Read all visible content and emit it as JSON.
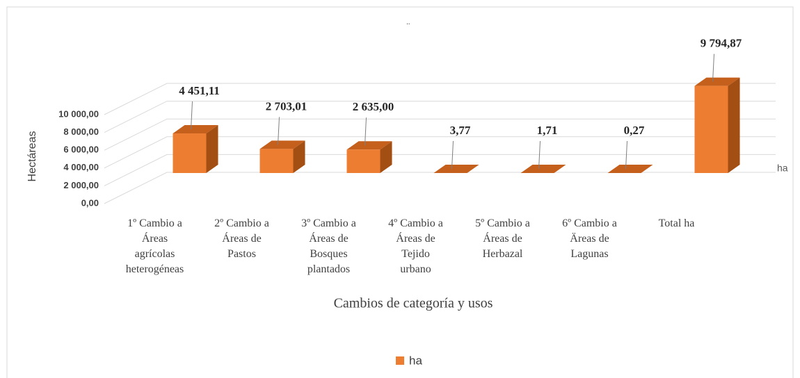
{
  "chart_data": {
    "type": "bar3d",
    "title": "¨",
    "x_label": "Cambios de categoría y usos",
    "y_label": "Hectáreas",
    "depth_label": "ha",
    "categories": [
      "1º Cambio a\nÁreas\nagrícolas\nheterogéneas",
      "2º  Cambio a\nÁreas de\nPastos",
      "3º Cambio a\nÁreas de\nBosques\nplantados",
      "4º  Cambio a\nÁreas de\nTejido\nurbano",
      "5º Cambio a\nÁreas de\nHerbazal",
      "6º Cambio a\nÄreas de\nLagunas",
      "Total  ha"
    ],
    "series": [
      {
        "name": "ha",
        "color": "#ed7d31",
        "values": [
          4451.11,
          2703.01,
          2635.0,
          3.77,
          1.71,
          0.27,
          9794.87
        ],
        "value_labels": [
          "4 451,11",
          "2 703,01",
          "2 635,00",
          "3,77",
          "1,71",
          "0,27",
          "9 794,87"
        ]
      }
    ],
    "ylim": [
      0,
      10000
    ],
    "yticks": [
      {
        "value": 0,
        "label": "0,00"
      },
      {
        "value": 2000,
        "label": "2 000,00"
      },
      {
        "value": 4000,
        "label": "4 000,00"
      },
      {
        "value": 6000,
        "label": "6 000,00"
      },
      {
        "value": 8000,
        "label": "8 000,00"
      },
      {
        "value": 10000,
        "label": "10 000,00"
      }
    ],
    "grid": true,
    "legend": "bottom"
  }
}
